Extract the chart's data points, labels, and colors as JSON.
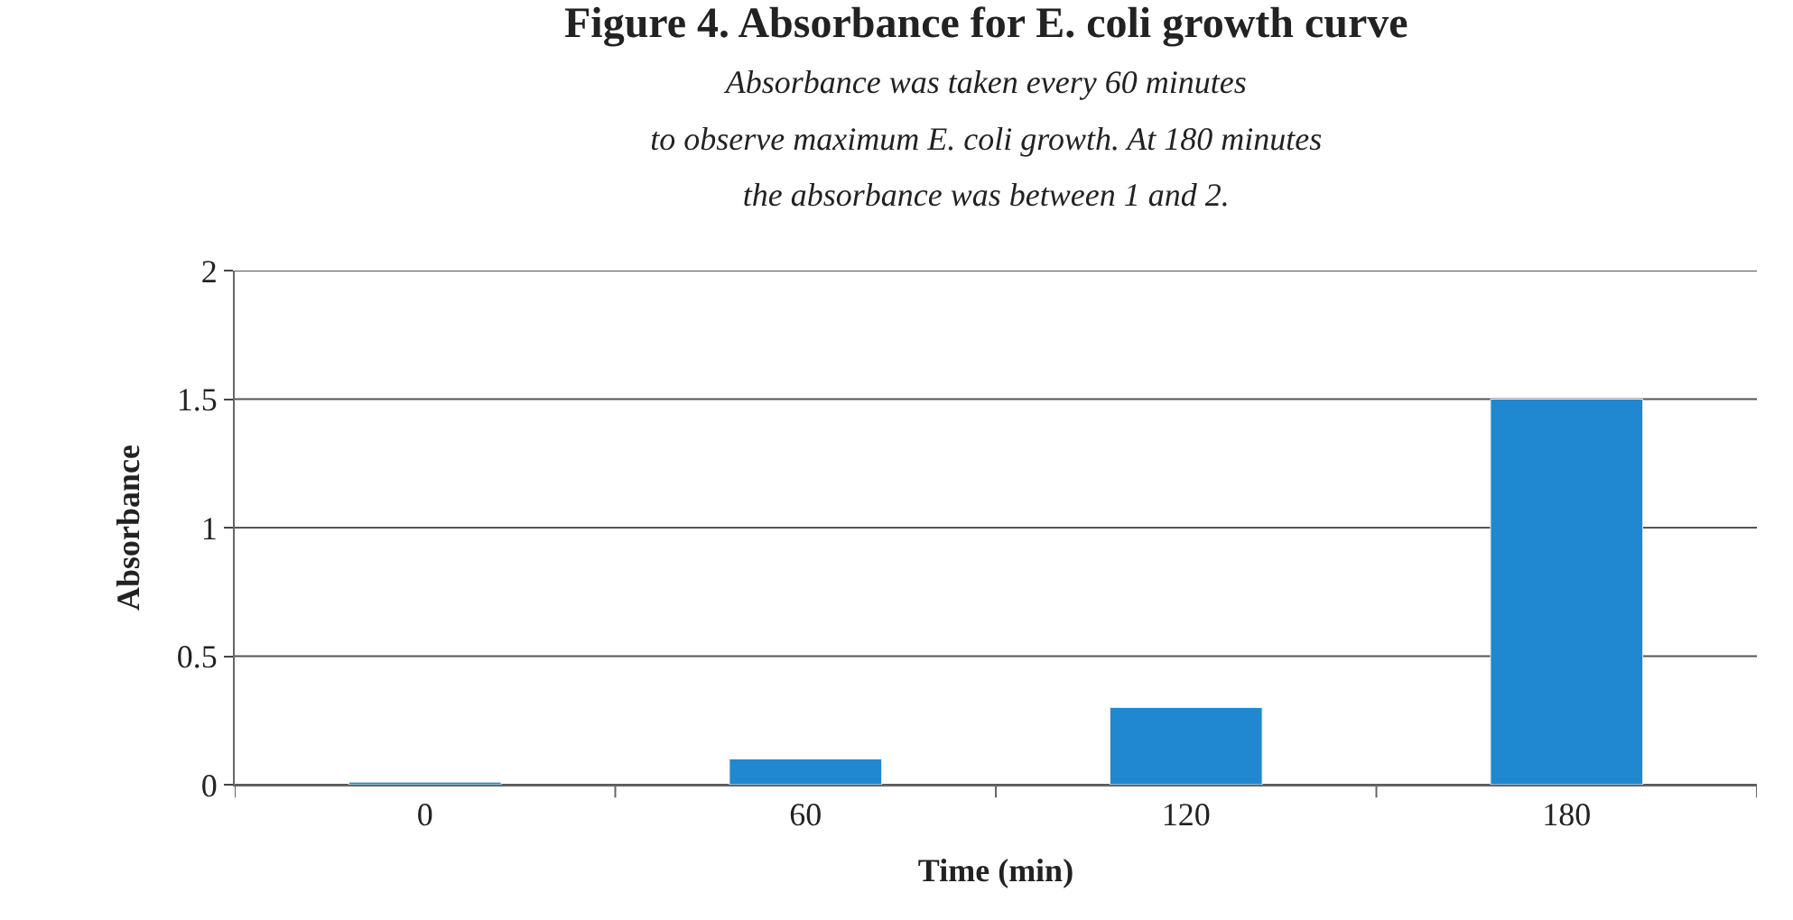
{
  "chart_data": {
    "type": "bar",
    "title": "Figure 4. Absorbance for E. coli growth curve",
    "subtitle": "Absorbance was taken every 60 minutes\nto observe maximum E. coli growth. At 180 minutes\nthe absorbance was between 1 and 2.",
    "xlabel": "Time (min)",
    "ylabel": "Absorbance",
    "categories": [
      "0",
      "60",
      "120",
      "180"
    ],
    "series": [
      {
        "color": "#1f88d0",
        "values": [
          0.01,
          0.1,
          0.3,
          1.5
        ]
      }
    ],
    "ylim": [
      0,
      2
    ],
    "yticks": [
      0,
      0.5,
      1,
      1.5,
      2
    ],
    "grid": "y"
  }
}
